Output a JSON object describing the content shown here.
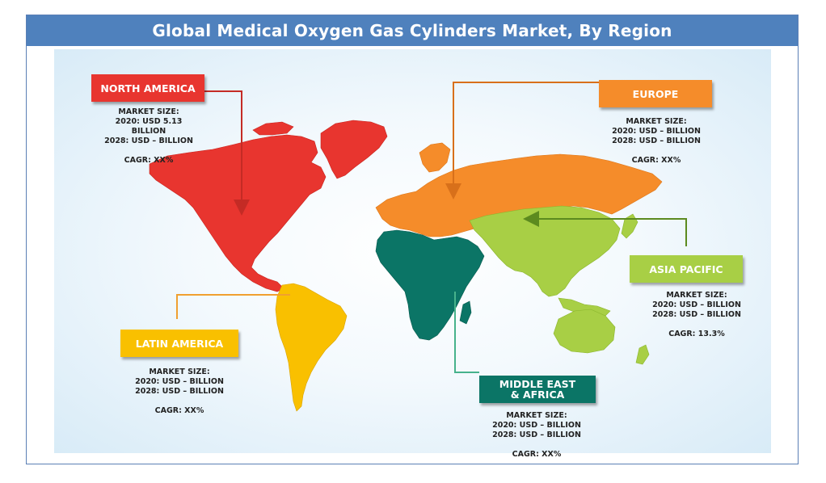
{
  "title": "Global Medical Oxygen Gas Cylinders Market, By Region",
  "colors": {
    "title_bar": "#4f81bd",
    "north_america": "#e8352f",
    "europe": "#f58c2a",
    "asia_pacific": "#a8cf45",
    "latin_america": "#f9c000",
    "middle_east_africa": "#0b7566"
  },
  "regions": {
    "north_america": {
      "label": "NORTH AMERICA",
      "market_size_label": "MARKET  SIZE:",
      "line_2020": "2020: USD 5.13",
      "line_2020b": "BILLION",
      "line_2028": "2028: USD – BILLION",
      "cagr": "CAGR: XX%"
    },
    "europe": {
      "label": "EUROPE",
      "market_size_label": "MARKET  SIZE:",
      "line_2020": "2020: USD – BILLION",
      "line_2028": "2028: USD – BILLION",
      "cagr": "CAGR: XX%"
    },
    "asia_pacific": {
      "label": "ASIA PACIFIC",
      "market_size_label": "MARKET  SIZE:",
      "line_2020": "2020: USD – BILLION",
      "line_2028": "2028: USD – BILLION",
      "cagr": "CAGR: 13.3%"
    },
    "latin_america": {
      "label": "LATIN AMERICA",
      "market_size_label": "MARKET  SIZE:",
      "line_2020": "2020: USD – BILLION",
      "line_2028": "2028: USD – BILLION",
      "cagr": "CAGR: XX%"
    },
    "middle_east_africa": {
      "label_line1": "MIDDLE EAST",
      "label_line2": "& AFRICA",
      "market_size_label": "MARKET  SIZE:",
      "line_2020": "2020: USD – BILLION",
      "line_2028": "2028: USD – BILLION",
      "cagr": "CAGR: XX%"
    }
  }
}
